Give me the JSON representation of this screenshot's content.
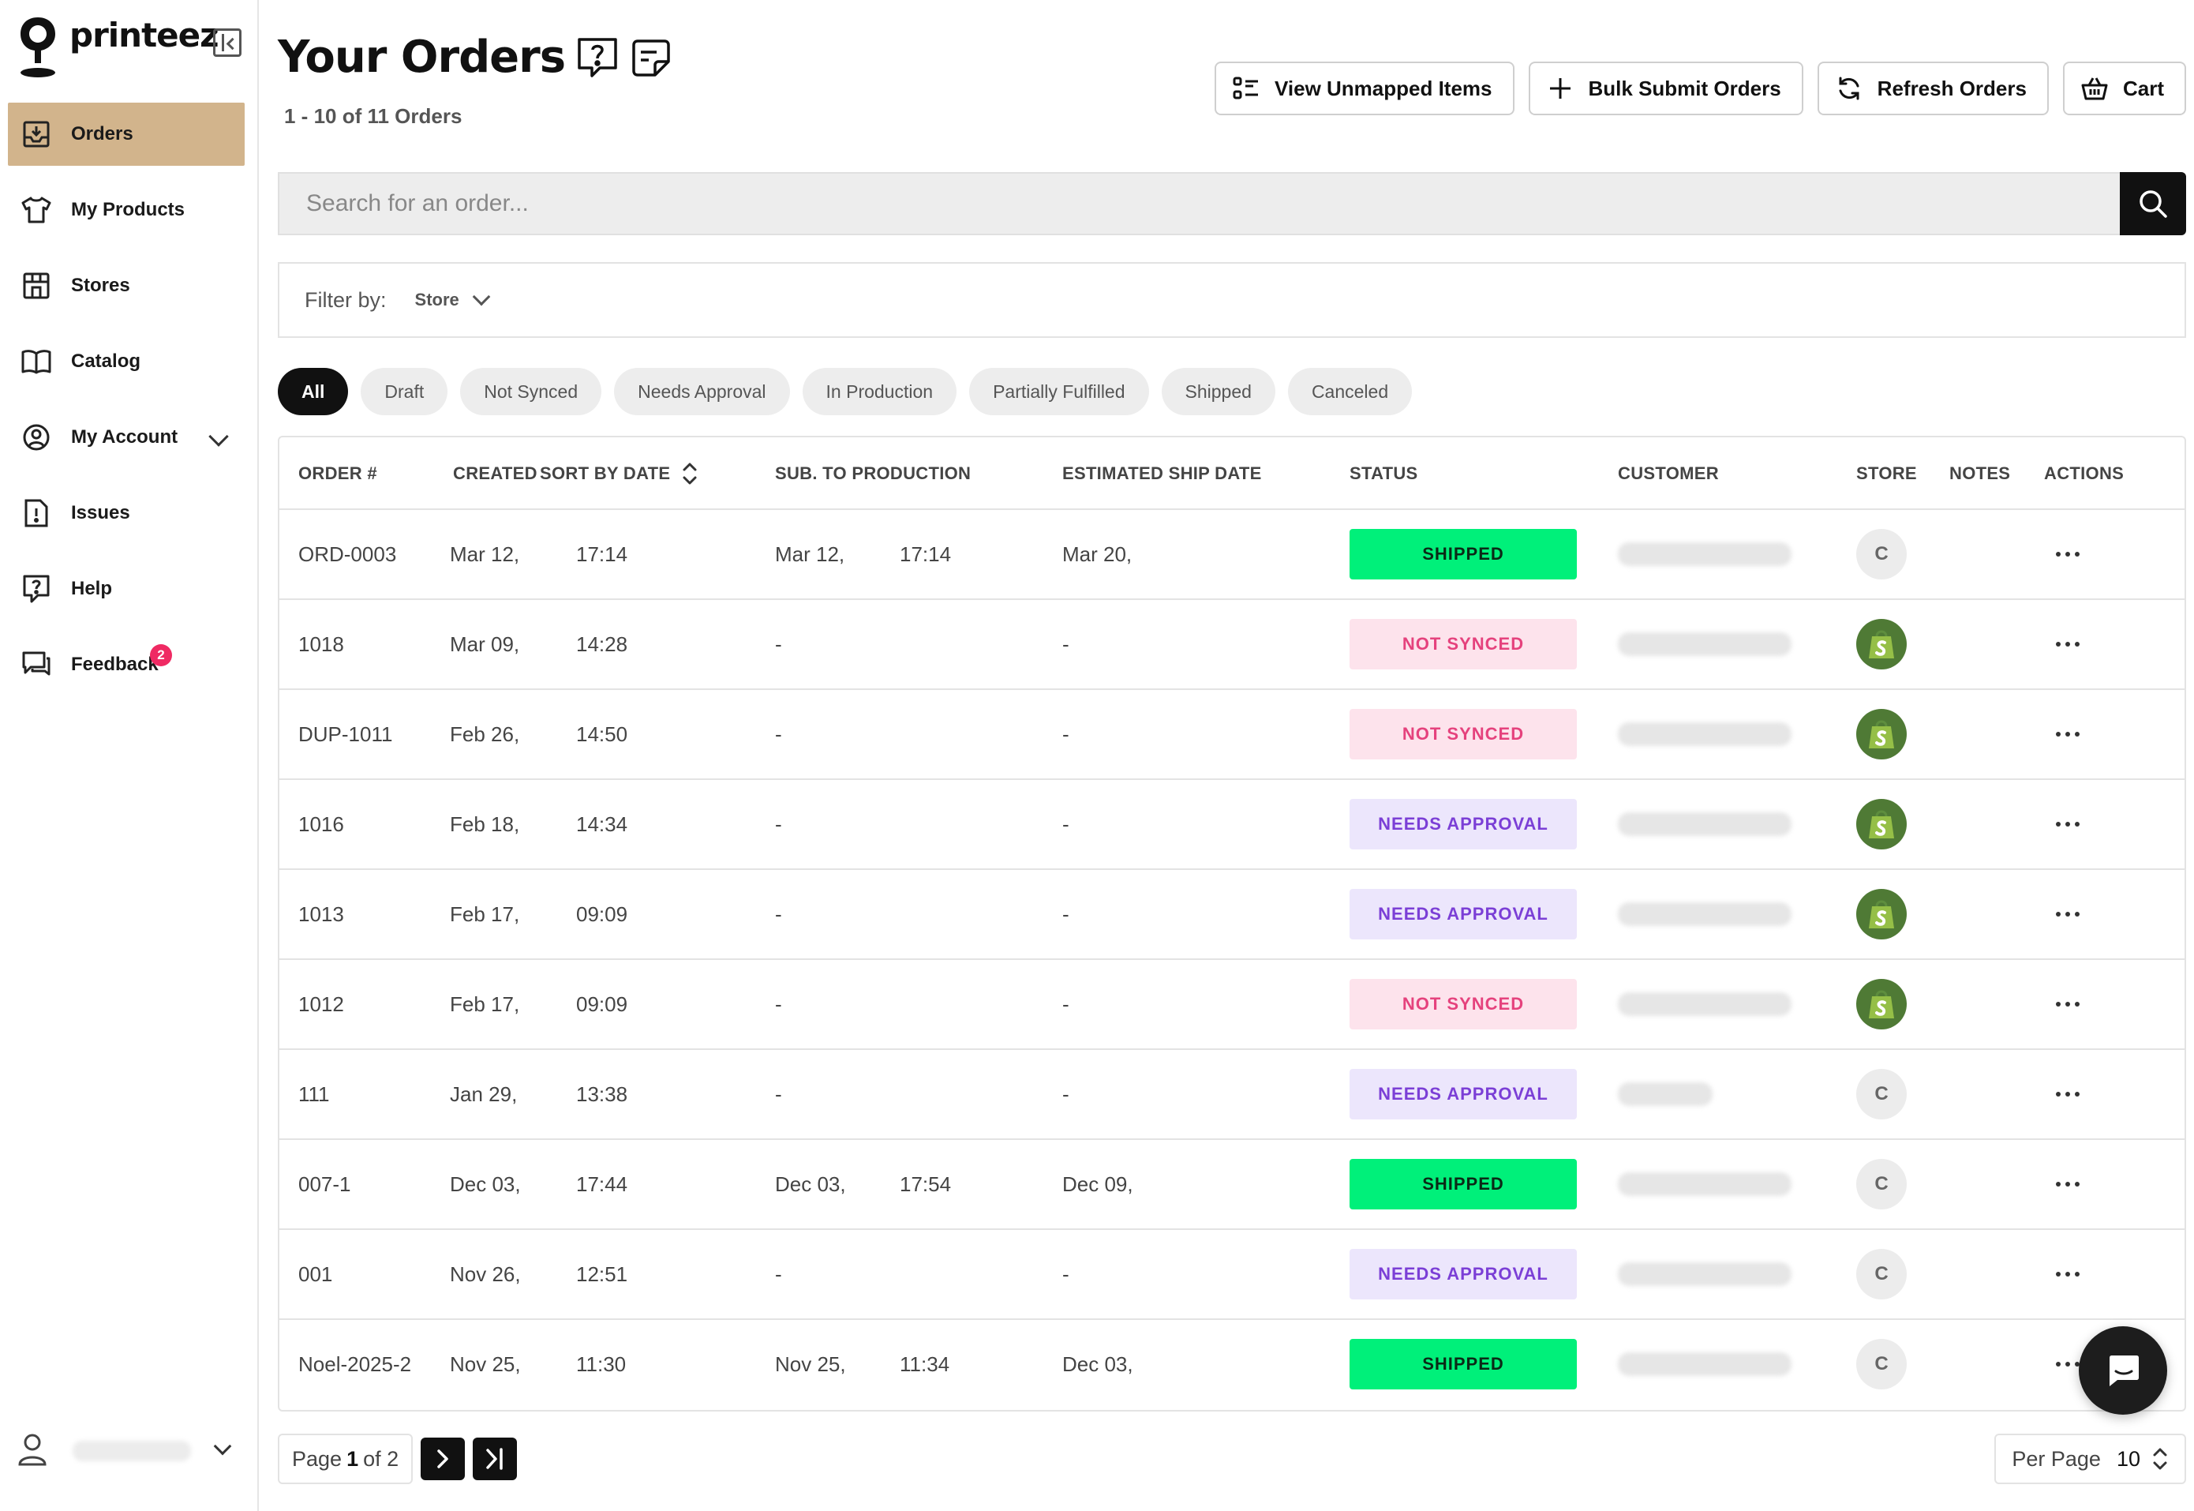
{
  "brand": {
    "name": "printeez"
  },
  "sidebar": {
    "items": [
      {
        "label": "Orders",
        "icon": "inbox-download-icon",
        "active": true
      },
      {
        "label": "My Products",
        "icon": "tshirt-icon"
      },
      {
        "label": "Stores",
        "icon": "storefront-icon"
      },
      {
        "label": "Catalog",
        "icon": "book-icon"
      },
      {
        "label": "My Account",
        "icon": "user-circle-icon",
        "expandable": true
      },
      {
        "label": "Issues",
        "icon": "alert-document-icon"
      },
      {
        "label": "Help",
        "icon": "help-bubble-icon"
      },
      {
        "label": "Feedback",
        "icon": "chat-icon",
        "badge": "2"
      }
    ],
    "user": {
      "icon": "user-icon"
    }
  },
  "header": {
    "title": "Your Orders",
    "order_count": "1 - 10 of 11 Orders",
    "buttons": {
      "unmapped": "View Unmapped Items",
      "bulk_submit": "Bulk Submit Orders",
      "refresh": "Refresh Orders",
      "cart": "Cart"
    }
  },
  "search": {
    "placeholder": "Search for an order..."
  },
  "filter": {
    "label": "Filter by:",
    "store": "Store"
  },
  "status_tabs": [
    "All",
    "Draft",
    "Not Synced",
    "Needs Approval",
    "In Production",
    "Partially Fulfilled",
    "Shipped",
    "Canceled"
  ],
  "table": {
    "headers": {
      "order": "ORDER #",
      "created": "CREATED",
      "sort_by": "SORT BY DATE",
      "sub_production": "SUB. TO PRODUCTION",
      "est_ship": "ESTIMATED SHIP DATE",
      "status": "STATUS",
      "customer": "CUSTOMER",
      "store": "STORE",
      "notes": "NOTES",
      "actions": "ACTIONS"
    },
    "rows": [
      {
        "order": "ORD-0003",
        "created_date": "Mar 12,",
        "created_time": "17:14",
        "sub_date": "Mar 12,",
        "sub_time": "17:14",
        "ship_date": "Mar 20,",
        "status": "SHIPPED",
        "status_type": "shipped",
        "store": "C",
        "store_type": "custom"
      },
      {
        "order": "1018",
        "created_date": "Mar 09,",
        "created_time": "14:28",
        "sub_date": "-",
        "sub_time": "",
        "ship_date": "-",
        "status": "NOT SYNCED",
        "status_type": "not-synced",
        "store": "",
        "store_type": "shopify"
      },
      {
        "order": "DUP-1011",
        "created_date": "Feb 26,",
        "created_time": "14:50",
        "sub_date": "-",
        "sub_time": "",
        "ship_date": "-",
        "status": "NOT SYNCED",
        "status_type": "not-synced",
        "store": "",
        "store_type": "shopify"
      },
      {
        "order": "1016",
        "created_date": "Feb 18,",
        "created_time": "14:34",
        "sub_date": "-",
        "sub_time": "",
        "ship_date": "-",
        "status": "NEEDS APPROVAL",
        "status_type": "needs-approval",
        "store": "",
        "store_type": "shopify"
      },
      {
        "order": "1013",
        "created_date": "Feb 17,",
        "created_time": "09:09",
        "sub_date": "-",
        "sub_time": "",
        "ship_date": "-",
        "status": "NEEDS APPROVAL",
        "status_type": "needs-approval",
        "store": "",
        "store_type": "shopify"
      },
      {
        "order": "1012",
        "created_date": "Feb 17,",
        "created_time": "09:09",
        "sub_date": "-",
        "sub_time": "",
        "ship_date": "-",
        "status": "NOT SYNCED",
        "status_type": "not-synced",
        "store": "",
        "store_type": "shopify"
      },
      {
        "order": "111",
        "created_date": "Jan 29,",
        "created_time": "13:38",
        "sub_date": "-",
        "sub_time": "",
        "ship_date": "-",
        "status": "NEEDS APPROVAL",
        "status_type": "needs-approval",
        "store": "C",
        "store_type": "custom",
        "short_customer": true
      },
      {
        "order": "007-1",
        "created_date": "Dec 03,",
        "created_time": "17:44",
        "sub_date": "Dec 03,",
        "sub_time": "17:54",
        "ship_date": "Dec 09,",
        "status": "SHIPPED",
        "status_type": "shipped",
        "store": "C",
        "store_type": "custom"
      },
      {
        "order": "001",
        "created_date": "Nov 26,",
        "created_time": "12:51",
        "sub_date": "-",
        "sub_time": "",
        "ship_date": "-",
        "status": "NEEDS APPROVAL",
        "status_type": "needs-approval",
        "store": "C",
        "store_type": "custom"
      },
      {
        "order": "Noel-2025-2",
        "created_date": "Nov 25,",
        "created_time": "11:30",
        "sub_date": "Nov 25,",
        "sub_time": "11:34",
        "ship_date": "Dec 03,",
        "status": "SHIPPED",
        "status_type": "shipped",
        "store": "C",
        "store_type": "custom"
      }
    ]
  },
  "status_colors": {
    "shipped": {
      "bg": "#00f07a",
      "fg": "#0b2a17"
    },
    "not-synced": {
      "bg": "#fde3ec",
      "fg": "#e5427d"
    },
    "needs-approval": {
      "bg": "#ece6fc",
      "fg": "#7b3fd6"
    }
  },
  "pagination": {
    "page_prefix": "Page",
    "current": "1",
    "of_text": "of 2",
    "per_page_label": "Per Page",
    "per_page_value": "10"
  },
  "colors": {
    "accent": "#d2b48c",
    "dark": "#111111"
  }
}
